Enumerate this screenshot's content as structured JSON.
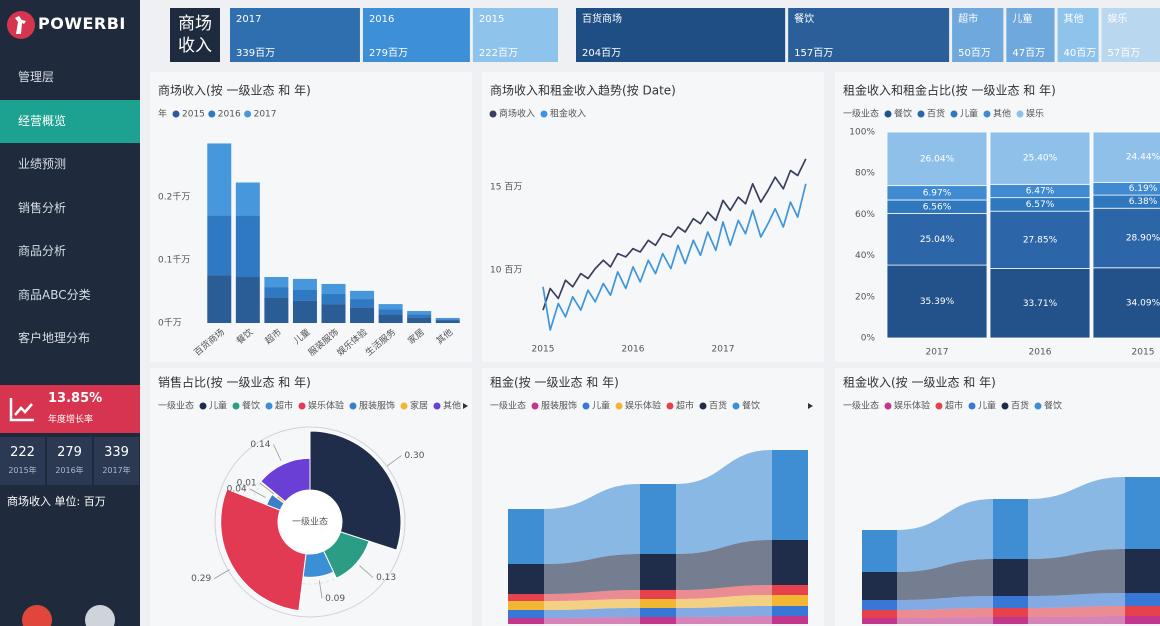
{
  "sidebar": {
    "logo": "POWERBI",
    "menu": [
      "管理层",
      "经营概览",
      "业绩预测",
      "销售分析",
      "商品分析",
      "商品ABC分类",
      "客户地理分布"
    ],
    "active": 1,
    "kpi": {
      "value": "13.85%",
      "label": "年度增长率"
    },
    "years": [
      {
        "value": "222",
        "label": "2015年"
      },
      {
        "value": "279",
        "label": "2016年"
      },
      {
        "value": "339",
        "label": "2017年"
      }
    ],
    "note": "商场收入 单位: 百万"
  },
  "header": {
    "title": "商场收入"
  },
  "chart_data": [
    {
      "type": "treemap",
      "categories": [
        "2017",
        "2016",
        "2015"
      ],
      "values": [
        339,
        279,
        222
      ],
      "value_labels": [
        "339百万",
        "279百万",
        "222百万"
      ],
      "colors": [
        "#2f6fb0",
        "#3d8fd8",
        "#8ec3ec"
      ]
    },
    {
      "type": "treemap",
      "categories": [
        "百货商场",
        "餐饮",
        "超市",
        "儿童",
        "其他",
        "娱乐"
      ],
      "values": [
        204,
        157,
        50,
        47,
        40,
        57
      ],
      "value_labels": [
        "204百万",
        "157百万",
        "50百万",
        "47百万",
        "40百万",
        "57百万"
      ],
      "colors": [
        "#1f4e85",
        "#2a5f9a",
        "#6fa8dc",
        "#6fa8dc",
        "#8ec3ec",
        "#b9d7ef"
      ]
    },
    {
      "type": "bar",
      "title": "商场收入(按 一级业态 和 年)",
      "legend_title": "年",
      "categories": [
        "百货商场",
        "餐饮",
        "超市",
        "儿童",
        "服装服饰",
        "娱乐体验",
        "生活服务",
        "家居",
        "其他"
      ],
      "series": [
        {
          "name": "2015",
          "color": "#2a5c96",
          "values": [
            0.076,
            0.073,
            0.041,
            0.035,
            0.03,
            0.025,
            0.014,
            0.009,
            0.004
          ]
        },
        {
          "name": "2016",
          "color": "#2f78c2",
          "values": [
            0.095,
            0.098,
            0.016,
            0.018,
            0.016,
            0.013,
            0.008,
            0.005,
            0.002
          ]
        },
        {
          "name": "2017",
          "color": "#4697dc",
          "values": [
            0.114,
            0.052,
            0.016,
            0.017,
            0.016,
            0.013,
            0.008,
            0.005,
            0.002
          ]
        }
      ],
      "ylim": [
        0,
        0.3
      ],
      "yticks": [
        {
          "value": 0,
          "label": "0千万"
        },
        {
          "value": 0.1,
          "label": "0.1千万"
        },
        {
          "value": 0.2,
          "label": "0.2千万"
        }
      ]
    },
    {
      "type": "line",
      "title": "商场收入和租金收入趋势(按 Date)",
      "x": [
        2015,
        2015.08,
        2015.17,
        2015.25,
        2015.33,
        2015.42,
        2015.5,
        2015.58,
        2015.67,
        2015.75,
        2015.83,
        2015.92,
        2016,
        2016.08,
        2016.17,
        2016.25,
        2016.33,
        2016.42,
        2016.5,
        2016.58,
        2016.67,
        2016.75,
        2016.83,
        2016.92,
        2017,
        2017.08,
        2017.17,
        2017.25,
        2017.33,
        2017.42,
        2017.5,
        2017.58,
        2017.67,
        2017.75,
        2017.83,
        2017.92
      ],
      "series": [
        {
          "name": "商场收入",
          "color": "#3a3f5e",
          "values": [
            7.6,
            8.9,
            8.3,
            9.4,
            9.0,
            9.8,
            9.5,
            10.1,
            10.6,
            10.2,
            11.0,
            10.8,
            11.3,
            11.1,
            11.8,
            11.5,
            12.2,
            12.0,
            12.6,
            12.3,
            13.1,
            12.8,
            13.5,
            13.0,
            14.2,
            13.6,
            14.4,
            14.0,
            15.2,
            14.1,
            14.8,
            15.6,
            14.9,
            16.0,
            15.7,
            16.7
          ]
        },
        {
          "name": "租金收入",
          "color": "#3f95dc",
          "values": [
            9.0,
            6.4,
            8.0,
            7.2,
            8.4,
            7.6,
            8.8,
            8.1,
            9.2,
            8.5,
            9.9,
            8.9,
            10.2,
            9.3,
            10.6,
            9.8,
            11.0,
            10.1,
            11.5,
            10.4,
            11.8,
            10.9,
            12.3,
            11.2,
            12.9,
            11.5,
            13.0,
            12.2,
            13.6,
            12.0,
            12.8,
            13.7,
            12.6,
            14.1,
            13.2,
            15.2
          ]
        }
      ],
      "xlim": [
        2014.95,
        2018.0
      ],
      "xticks": [
        2015,
        2016,
        2017
      ],
      "ylim": [
        5.5,
        18.5
      ],
      "yticks": [
        {
          "value": 10,
          "label": "10 百万"
        },
        {
          "value": 15,
          "label": "15 百万"
        }
      ]
    },
    {
      "type": "stack100",
      "title": "租金收入和租金占比(按 一级业态 和 年)",
      "legend_title": "一级业态",
      "categories": [
        "2017",
        "2016",
        "2015"
      ],
      "series": [
        {
          "name": "餐饮",
          "color": "#23528a",
          "values": [
            35.39,
            33.71,
            34.09
          ],
          "value_labels": [
            "35.39%",
            "33.71%",
            "34.09%"
          ]
        },
        {
          "name": "百货",
          "color": "#2d66a8",
          "values": [
            25.04,
            27.85,
            28.9
          ],
          "value_labels": [
            "25.04%",
            "27.85%",
            "28.90%"
          ]
        },
        {
          "name": "儿童",
          "color": "#3078be",
          "values": [
            6.56,
            6.57,
            6.38
          ],
          "value_labels": [
            "6.56%",
            "6.57%",
            "6.38%"
          ]
        },
        {
          "name": "其他",
          "color": "#3f8ad0",
          "values": [
            6.97,
            6.47,
            6.19
          ],
          "value_labels": [
            "6.97%",
            "6.47%",
            "6.19%"
          ]
        },
        {
          "name": "娱乐",
          "color": "#8fc0ea",
          "values": [
            26.04,
            25.4,
            24.44
          ],
          "value_labels": [
            "26.04%",
            "25.40%",
            "24.44%"
          ]
        }
      ],
      "ylim": [
        0,
        100
      ],
      "yticks": [
        {
          "value": 0,
          "label": "0%"
        },
        {
          "value": 20,
          "label": "20%"
        },
        {
          "value": 40,
          "label": "40%"
        },
        {
          "value": 60,
          "label": "60%"
        },
        {
          "value": 80,
          "label": "80%"
        },
        {
          "value": 100,
          "label": "100%"
        }
      ]
    },
    {
      "type": "rose",
      "title": "销售占比(按 一级业态 和 年)",
      "legend_title": "一级业态",
      "center_label": "一级业态",
      "categories": [
        "儿童",
        "餐饮",
        "超市",
        "娱乐体验",
        "服装服饰",
        "家居",
        "其他"
      ],
      "values": [
        0.3,
        0.13,
        0.09,
        0.29,
        0.04,
        0.01,
        0.14
      ],
      "value_labels": [
        "0.30",
        "0.13",
        "0.09",
        "0.29",
        "0.04",
        "0.01",
        "0.14"
      ],
      "colors": [
        "#1f2d4a",
        "#2a9d84",
        "#3b8fd6",
        "#e23a52",
        "#3a7fc8",
        "#f2b632",
        "#6a3fd6"
      ]
    },
    {
      "type": "ribbon",
      "title": "租金(按 一级业态 和 年)",
      "legend_title": "一级业态",
      "series": [
        {
          "name": "服装服饰",
          "color": "#c2378c",
          "values": [
            6,
            7,
            8
          ]
        },
        {
          "name": "儿童",
          "color": "#3977d6",
          "values": [
            8,
            9,
            10
          ]
        },
        {
          "name": "娱乐体验",
          "color": "#f2b632",
          "values": [
            9,
            9,
            11
          ]
        },
        {
          "name": "超市",
          "color": "#e5424d",
          "values": [
            7,
            9,
            10
          ]
        },
        {
          "name": "百货",
          "color": "#1f2d4a",
          "values": [
            30,
            36,
            45
          ]
        },
        {
          "name": "餐饮",
          "color": "#3f8ed4",
          "values": [
            55,
            70,
            90
          ]
        }
      ]
    },
    {
      "type": "ribbon",
      "title": "租金收入(按 一级业态 和 年)",
      "legend_title": "一级业态",
      "series": [
        {
          "name": "娱乐体验",
          "color": "#c2378c",
          "values": [
            6,
            7,
            8
          ]
        },
        {
          "name": "超市",
          "color": "#e5424d",
          "values": [
            8,
            9,
            10
          ]
        },
        {
          "name": "儿童",
          "color": "#3977d6",
          "values": [
            10,
            12,
            13
          ]
        },
        {
          "name": "百货",
          "color": "#1f2d4a",
          "values": [
            28,
            37,
            44
          ]
        },
        {
          "name": "餐饮",
          "color": "#3f8ed4",
          "values": [
            42,
            60,
            72
          ]
        }
      ]
    }
  ]
}
